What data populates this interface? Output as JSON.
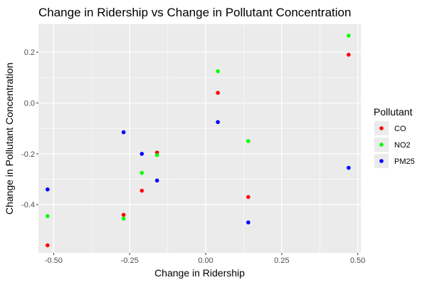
{
  "chart_data": {
    "type": "scatter",
    "title": "Change in Ridership vs Change in Pollutant Concentration",
    "xlabel": "Change in Ridership",
    "ylabel": "Change in Pollutant Concentration",
    "xlim": [
      -0.55,
      0.51
    ],
    "ylim": [
      -0.59,
      0.31
    ],
    "x_ticks": [
      -0.5,
      -0.25,
      0,
      0.25,
      0.5
    ],
    "x_tick_labels": [
      "-0.50",
      "-0.25",
      "0.00",
      "0.25",
      "0.50"
    ],
    "y_ticks": [
      0.2,
      0.0,
      -0.2,
      -0.4
    ],
    "y_tick_labels": [
      "0.2",
      "0.0",
      "-0.2",
      "-0.4"
    ],
    "grid": true,
    "legend": {
      "title": "Pollutant",
      "position": "right"
    },
    "series": [
      {
        "name": "CO",
        "color": "#ff0000",
        "points": [
          [
            -0.52,
            -0.56
          ],
          [
            -0.27,
            -0.44
          ],
          [
            -0.21,
            -0.345
          ],
          [
            -0.16,
            -0.195
          ],
          [
            0.04,
            0.04
          ],
          [
            0.14,
            -0.37
          ],
          [
            0.47,
            0.19
          ]
        ]
      },
      {
        "name": "NO2",
        "color": "#00ff00",
        "points": [
          [
            -0.52,
            -0.445
          ],
          [
            -0.27,
            -0.455
          ],
          [
            -0.21,
            -0.275
          ],
          [
            -0.16,
            -0.205
          ],
          [
            0.04,
            0.125
          ],
          [
            0.14,
            -0.15
          ],
          [
            0.47,
            0.265
          ]
        ]
      },
      {
        "name": "PM25",
        "color": "#0000ff",
        "points": [
          [
            -0.52,
            -0.34
          ],
          [
            -0.27,
            -0.115
          ],
          [
            -0.21,
            -0.2
          ],
          [
            -0.16,
            -0.305
          ],
          [
            0.04,
            -0.075
          ],
          [
            0.14,
            -0.47
          ],
          [
            0.47,
            -0.255
          ]
        ]
      }
    ]
  }
}
